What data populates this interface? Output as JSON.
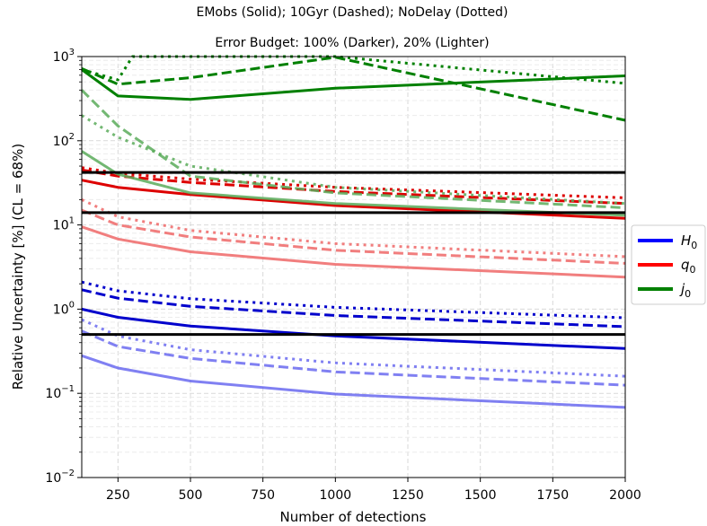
{
  "chart_data": {
    "type": "line",
    "title": "EMobs (Solid); 10Gyr (Dashed); NoDelay (Dotted)",
    "subtitle": "Error Budget: 100% (Darker), 20% (Lighter)",
    "xlabel": "Number of detections",
    "ylabel": "Relative Uncertainty [%] (CL = 68%)",
    "xlim": [
      125,
      2000
    ],
    "ylim": [
      0.01,
      1000
    ],
    "yscale": "log",
    "grid": true,
    "legend_position": "right",
    "x_ticks": [
      250,
      500,
      750,
      1000,
      1250,
      1500,
      1750,
      2000
    ],
    "x_tick_labels": [
      "250",
      "500",
      "750",
      "1000",
      "1250",
      "1500",
      "1750",
      "2000"
    ],
    "y_ticks": [
      0.01,
      0.1,
      1,
      10,
      100,
      1000
    ],
    "y_tick_labels": [
      {
        "base": "10",
        "exp": "−2"
      },
      {
        "base": "10",
        "exp": "−1"
      },
      {
        "base": "10",
        "exp": "0"
      },
      {
        "base": "10",
        "exp": "1"
      },
      {
        "base": "10",
        "exp": "2"
      },
      {
        "base": "10",
        "exp": "3"
      }
    ],
    "legend": [
      {
        "sym": "H",
        "sub": "0",
        "color": "#0000ff"
      },
      {
        "sym": "q",
        "sub": "0",
        "color": "#ff0000"
      },
      {
        "sym": "j",
        "sub": "0",
        "color": "#008000"
      }
    ],
    "hlines": [
      42,
      14,
      0.5
    ],
    "series": [
      {
        "param": "H0",
        "model": "EMobs",
        "budget": "100%",
        "style": "solid",
        "color": "#0000cc",
        "opacity": 1.0,
        "x": [
          125,
          250,
          500,
          1000,
          2000
        ],
        "y": [
          1.0,
          0.8,
          0.63,
          0.48,
          0.34
        ]
      },
      {
        "param": "H0",
        "model": "10Gyr",
        "budget": "100%",
        "style": "dashed",
        "color": "#0000cc",
        "opacity": 1.0,
        "x": [
          125,
          250,
          500,
          1000,
          2000
        ],
        "y": [
          1.7,
          1.35,
          1.08,
          0.84,
          0.62
        ]
      },
      {
        "param": "H0",
        "model": "NoDelay",
        "budget": "100%",
        "style": "dotted",
        "color": "#0000cc",
        "opacity": 1.0,
        "x": [
          125,
          250,
          500,
          1000,
          2000
        ],
        "y": [
          2.1,
          1.65,
          1.33,
          1.05,
          0.79
        ]
      },
      {
        "param": "H0",
        "model": "EMobs",
        "budget": "20%",
        "style": "solid",
        "color": "#5555ee",
        "opacity": 0.75,
        "x": [
          125,
          250,
          500,
          1000,
          2000
        ],
        "y": [
          0.28,
          0.2,
          0.14,
          0.098,
          0.068
        ]
      },
      {
        "param": "H0",
        "model": "10Gyr",
        "budget": "20%",
        "style": "dashed",
        "color": "#5555ee",
        "opacity": 0.75,
        "x": [
          125,
          250,
          500,
          1000,
          2000
        ],
        "y": [
          0.55,
          0.36,
          0.26,
          0.18,
          0.125
        ]
      },
      {
        "param": "H0",
        "model": "NoDelay",
        "budget": "20%",
        "style": "dotted",
        "color": "#5555ee",
        "opacity": 0.75,
        "x": [
          125,
          250,
          500,
          1000,
          2000
        ],
        "y": [
          0.75,
          0.48,
          0.33,
          0.23,
          0.16
        ]
      },
      {
        "param": "q0",
        "model": "EMobs",
        "budget": "100%",
        "style": "solid",
        "color": "#dd0000",
        "opacity": 1.0,
        "x": [
          125,
          250,
          500,
          1000,
          2000
        ],
        "y": [
          34,
          28,
          23,
          17,
          12
        ]
      },
      {
        "param": "q0",
        "model": "10Gyr",
        "budget": "100%",
        "style": "dashed",
        "color": "#dd0000",
        "opacity": 1.0,
        "x": [
          125,
          250,
          500,
          1000,
          2000
        ],
        "y": [
          45,
          38,
          32,
          25,
          18
        ]
      },
      {
        "param": "q0",
        "model": "NoDelay",
        "budget": "100%",
        "style": "dotted",
        "color": "#dd0000",
        "opacity": 1.0,
        "x": [
          125,
          250,
          500,
          1000,
          2000
        ],
        "y": [
          48,
          41,
          35,
          28,
          21
        ]
      },
      {
        "param": "q0",
        "model": "EMobs",
        "budget": "20%",
        "style": "solid",
        "color": "#f07070",
        "opacity": 0.9,
        "x": [
          125,
          250,
          500,
          1000,
          2000
        ],
        "y": [
          9.5,
          6.8,
          4.8,
          3.4,
          2.4
        ]
      },
      {
        "param": "q0",
        "model": "10Gyr",
        "budget": "20%",
        "style": "dashed",
        "color": "#f07070",
        "opacity": 0.9,
        "x": [
          125,
          250,
          500,
          1000,
          2000
        ],
        "y": [
          15,
          10,
          7.2,
          5.0,
          3.5
        ]
      },
      {
        "param": "q0",
        "model": "NoDelay",
        "budget": "20%",
        "style": "dotted",
        "color": "#f07070",
        "opacity": 0.9,
        "x": [
          125,
          250,
          500,
          1000,
          2000
        ],
        "y": [
          20,
          12.5,
          8.6,
          6.0,
          4.2
        ]
      },
      {
        "param": "j0",
        "model": "EMobs",
        "budget": "100%",
        "style": "solid",
        "color": "#008000",
        "opacity": 1.0,
        "x": [
          125,
          250,
          500,
          1000,
          2000
        ],
        "y": [
          700,
          340,
          310,
          420,
          590
        ]
      },
      {
        "param": "j0",
        "model": "10Gyr",
        "budget": "100%",
        "style": "dashed",
        "color": "#008000",
        "opacity": 1.0,
        "x": [
          125,
          250,
          500,
          1000,
          2000
        ],
        "y": [
          720,
          470,
          560,
          980,
          175
        ]
      },
      {
        "param": "j0",
        "model": "NoDelay",
        "budget": "100%",
        "style": "dotted",
        "color": "#008000",
        "opacity": 1.0,
        "x": [
          125,
          250,
          300,
          1000,
          2000
        ],
        "y": [
          700,
          530,
          1000,
          1000,
          480
        ]
      },
      {
        "param": "j0",
        "model": "EMobs",
        "budget": "20%",
        "style": "solid",
        "color": "#5aab5a",
        "opacity": 0.85,
        "x": [
          125,
          250,
          500,
          1000,
          2000
        ],
        "y": [
          75,
          40,
          24,
          18,
          13
        ]
      },
      {
        "param": "j0",
        "model": "10Gyr",
        "budget": "20%",
        "style": "dashed",
        "color": "#5aab5a",
        "opacity": 0.85,
        "x": [
          125,
          250,
          500,
          1000,
          2000
        ],
        "y": [
          400,
          150,
          38,
          24,
          16
        ]
      },
      {
        "param": "j0",
        "model": "NoDelay",
        "budget": "20%",
        "style": "dotted",
        "color": "#5aab5a",
        "opacity": 0.85,
        "x": [
          125,
          250,
          500,
          1000,
          2000
        ],
        "y": [
          200,
          110,
          50,
          28,
          18
        ]
      }
    ]
  }
}
